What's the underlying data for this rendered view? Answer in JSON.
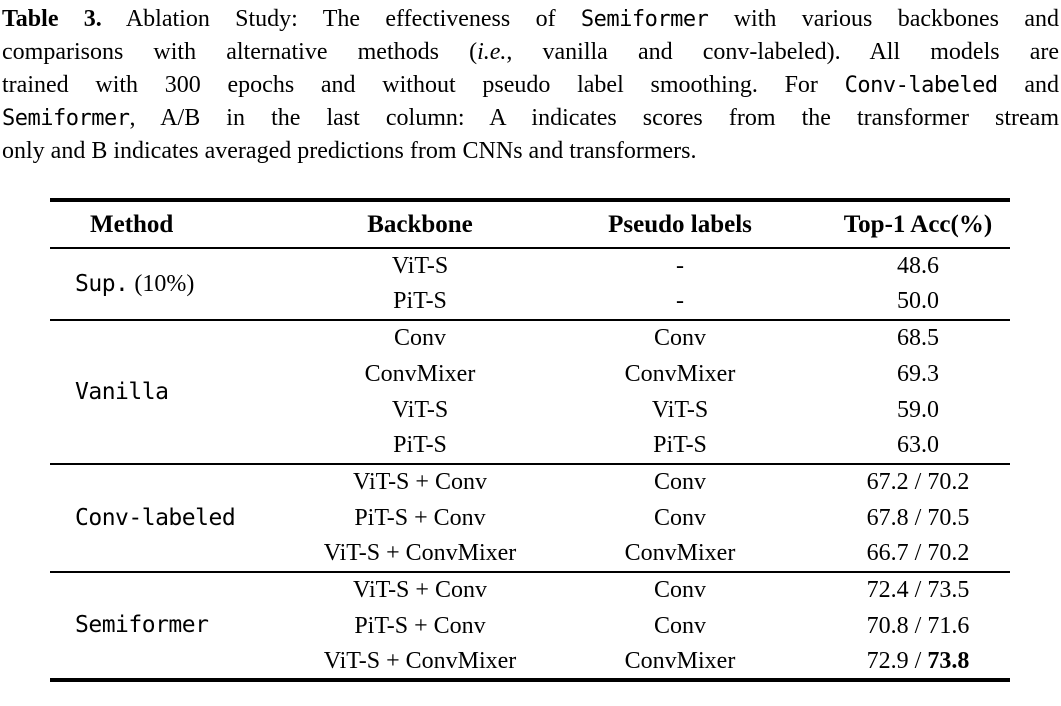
{
  "caption": {
    "lines": [
      {
        "segments": [
          {
            "t": "Table 3.",
            "s": "bold"
          },
          {
            "t": " Ablation Study: The effectiveness of ",
            "s": "r"
          },
          {
            "t": "Semiformer",
            "s": "mono"
          },
          {
            "t": " with various backbones and",
            "s": "r"
          }
        ]
      },
      {
        "segments": [
          {
            "t": "comparisons with alternative methods (",
            "s": "r"
          },
          {
            "t": "i.e.",
            "s": "italic"
          },
          {
            "t": ", vanilla and conv-labeled). All models are",
            "s": "r"
          }
        ]
      },
      {
        "segments": [
          {
            "t": "trained with 300 epochs and without pseudo label smoothing. For ",
            "s": "r"
          },
          {
            "t": "Conv-labeled",
            "s": "mono"
          },
          {
            "t": " and",
            "s": "r"
          }
        ]
      },
      {
        "segments": [
          {
            "t": "Semiformer",
            "s": "mono"
          },
          {
            "t": ", A/B in the last column: A indicates scores from the transformer stream",
            "s": "r"
          }
        ]
      },
      {
        "segments": [
          {
            "t": "only and B indicates averaged predictions from CNNs and transformers.",
            "s": "r"
          }
        ]
      }
    ]
  },
  "table": {
    "columns": [
      "Method",
      "Backbone",
      "Pseudo labels",
      "Top-1 Acc(%)"
    ],
    "groups": [
      {
        "method": [
          {
            "t": "Sup.",
            "s": "mono"
          },
          {
            "t": " (10%)",
            "s": "r"
          }
        ],
        "rows": [
          {
            "backbone": "ViT-S",
            "pseudo": "-",
            "acc": [
              {
                "t": "48.6"
              }
            ]
          },
          {
            "backbone": "PiT-S",
            "pseudo": "-",
            "acc": [
              {
                "t": "50.0"
              }
            ]
          }
        ]
      },
      {
        "method": [
          {
            "t": "Vanilla",
            "s": "mono"
          }
        ],
        "rows": [
          {
            "backbone": "Conv",
            "pseudo": "Conv",
            "acc": [
              {
                "t": "68.5"
              }
            ]
          },
          {
            "backbone": "ConvMixer",
            "pseudo": "ConvMixer",
            "acc": [
              {
                "t": "69.3"
              }
            ]
          },
          {
            "backbone": "ViT-S",
            "pseudo": "ViT-S",
            "acc": [
              {
                "t": "59.0"
              }
            ]
          },
          {
            "backbone": "PiT-S",
            "pseudo": "PiT-S",
            "acc": [
              {
                "t": "63.0"
              }
            ]
          }
        ]
      },
      {
        "method": [
          {
            "t": "Conv-labeled",
            "s": "mono"
          }
        ],
        "rows": [
          {
            "backbone": "ViT-S + Conv",
            "pseudo": "Conv",
            "acc": [
              {
                "t": "67.2 / 70.2"
              }
            ]
          },
          {
            "backbone": "PiT-S + Conv",
            "pseudo": "Conv",
            "acc": [
              {
                "t": "67.8 / 70.5"
              }
            ]
          },
          {
            "backbone": "ViT-S + ConvMixer",
            "pseudo": "ConvMixer",
            "acc": [
              {
                "t": "66.7 / 70.2"
              }
            ]
          }
        ]
      },
      {
        "method": [
          {
            "t": "Semiformer",
            "s": "mono"
          }
        ],
        "rows": [
          {
            "backbone": "ViT-S + Conv",
            "pseudo": "Conv",
            "acc": [
              {
                "t": "72.4 / 73.5"
              }
            ]
          },
          {
            "backbone": "PiT-S + Conv",
            "pseudo": "Conv",
            "acc": [
              {
                "t": "70.8 / 71.6"
              }
            ]
          },
          {
            "backbone": "ViT-S + ConvMixer",
            "pseudo": "ConvMixer",
            "acc": [
              {
                "t": "72.9 / "
              },
              {
                "t": "73.8",
                "b": true
              }
            ]
          }
        ]
      }
    ]
  },
  "colors": {
    "text": "#000000",
    "background": "#ffffff",
    "rule": "#000000"
  }
}
